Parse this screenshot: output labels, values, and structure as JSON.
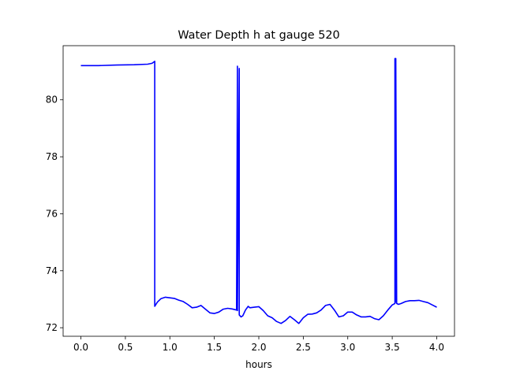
{
  "chart_data": {
    "type": "line",
    "title": "Water Depth h at gauge 520",
    "xlabel": "hours",
    "ylabel": "",
    "xlim": [
      -0.2,
      4.2
    ],
    "ylim": [
      71.7,
      81.9
    ],
    "xticks": [
      0.0,
      0.5,
      1.0,
      1.5,
      2.0,
      2.5,
      3.0,
      3.5,
      4.0
    ],
    "xtick_labels": [
      "0.0",
      "0.5",
      "1.0",
      "1.5",
      "2.0",
      "2.5",
      "3.0",
      "3.5",
      "4.0"
    ],
    "yticks": [
      72,
      74,
      76,
      78,
      80
    ],
    "ytick_labels": [
      "72",
      "74",
      "76",
      "78",
      "80"
    ],
    "grid": false,
    "line_color": "#0000ff",
    "series": [
      {
        "x": [
          0.0,
          0.2,
          0.4,
          0.6,
          0.75,
          0.8,
          0.83,
          0.83,
          0.84,
          0.86,
          0.9,
          0.95,
          1.0,
          1.05,
          1.1,
          1.15,
          1.2,
          1.25,
          1.3,
          1.35,
          1.4,
          1.45,
          1.5,
          1.55,
          1.6,
          1.65,
          1.7,
          1.75,
          1.76,
          1.76,
          1.78,
          1.78,
          1.8,
          1.82,
          1.85,
          1.88,
          1.9,
          1.95,
          2.0,
          2.05,
          2.1,
          2.15,
          2.2,
          2.25,
          2.3,
          2.35,
          2.4,
          2.45,
          2.5,
          2.55,
          2.6,
          2.65,
          2.7,
          2.75,
          2.8,
          2.85,
          2.9,
          2.95,
          3.0,
          3.05,
          3.1,
          3.15,
          3.2,
          3.25,
          3.3,
          3.35,
          3.4,
          3.45,
          3.5,
          3.53,
          3.53,
          3.54,
          3.54,
          3.55,
          3.55,
          3.57,
          3.6,
          3.65,
          3.7,
          3.75,
          3.8,
          3.85,
          3.9,
          3.95,
          4.0
        ],
        "y": [
          81.2,
          81.2,
          81.22,
          81.23,
          81.25,
          81.28,
          81.35,
          72.75,
          72.8,
          72.9,
          73.02,
          73.07,
          73.05,
          73.03,
          72.97,
          72.92,
          72.82,
          72.7,
          72.72,
          72.78,
          72.65,
          72.52,
          72.5,
          72.55,
          72.65,
          72.68,
          72.66,
          72.62,
          81.18,
          72.6,
          81.1,
          72.45,
          72.38,
          72.42,
          72.62,
          72.75,
          72.7,
          72.72,
          72.74,
          72.6,
          72.42,
          72.35,
          72.22,
          72.15,
          72.25,
          72.4,
          72.28,
          72.15,
          72.35,
          72.47,
          72.48,
          72.52,
          72.62,
          72.78,
          72.82,
          72.62,
          72.38,
          72.42,
          72.55,
          72.55,
          72.45,
          72.38,
          72.38,
          72.4,
          72.32,
          72.28,
          72.42,
          72.62,
          72.8,
          72.85,
          81.45,
          72.9,
          81.45,
          72.88,
          72.85,
          72.82,
          72.85,
          72.92,
          72.95,
          72.95,
          72.96,
          72.92,
          72.88,
          72.8,
          72.72
        ]
      }
    ]
  }
}
